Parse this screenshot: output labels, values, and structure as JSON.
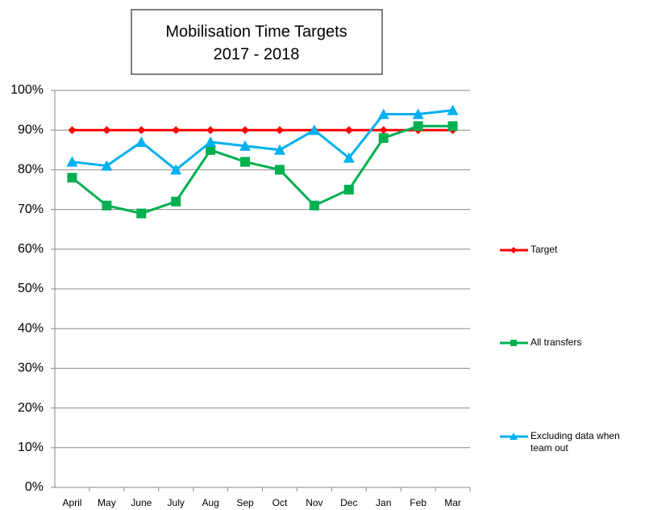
{
  "chart_data": {
    "type": "line",
    "title": "Mobilisation Time Targets",
    "subtitle": "2017 - 2018",
    "categories": [
      "April",
      "May",
      "June",
      "July",
      "Aug",
      "Sep",
      "Oct",
      "Nov",
      "Dec",
      "Jan",
      "Feb",
      "Mar"
    ],
    "series": [
      {
        "name": "Target",
        "color": "#ff0000",
        "marker": "diamond",
        "values": [
          90,
          90,
          90,
          90,
          90,
          90,
          90,
          90,
          90,
          90,
          90,
          90
        ]
      },
      {
        "name": "All transfers",
        "color": "#00b050",
        "marker": "square",
        "values": [
          78,
          71,
          69,
          72,
          85,
          82,
          80,
          71,
          75,
          88,
          91,
          91
        ]
      },
      {
        "name": "Excluding data when team out",
        "color": "#00b0f0",
        "marker": "triangle",
        "values": [
          82,
          81,
          87,
          80,
          87,
          86,
          85,
          90,
          83,
          94,
          94,
          95
        ]
      }
    ],
    "ylim": [
      0,
      100
    ],
    "yticks": [
      {
        "value": 0,
        "label": "0%"
      },
      {
        "value": 10,
        "label": "10%"
      },
      {
        "value": 20,
        "label": "20%"
      },
      {
        "value": 30,
        "label": "30%"
      },
      {
        "value": 40,
        "label": "40%"
      },
      {
        "value": 50,
        "label": "50%"
      },
      {
        "value": 60,
        "label": "60%"
      },
      {
        "value": 70,
        "label": "70%"
      },
      {
        "value": 80,
        "label": "80%"
      },
      {
        "value": 90,
        "label": "90%"
      },
      {
        "value": 100,
        "label": "100%"
      }
    ],
    "grid": true,
    "legend": "right"
  }
}
